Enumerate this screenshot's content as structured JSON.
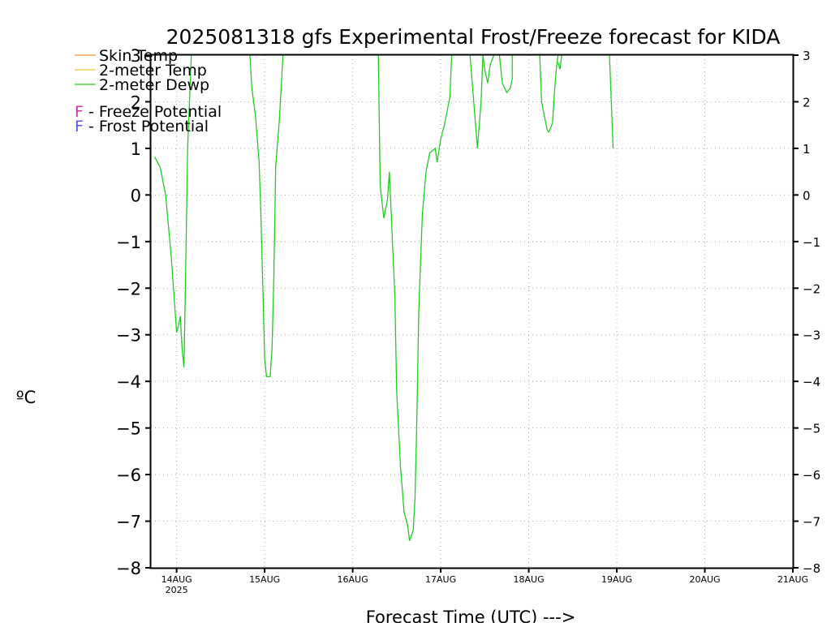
{
  "chart_data": {
    "type": "line",
    "title": "2025081318 gfs Experimental Frost/Freeze forecast for KIDA",
    "xlabel": "Forecast Time (UTC) --->",
    "ylabel": "ºC",
    "ylim": [
      -8,
      3
    ],
    "yticks": [
      3,
      2,
      1,
      0,
      -1,
      -2,
      -3,
      -4,
      -5,
      -6,
      -7,
      -8
    ],
    "yticks_left_labels": [
      "3",
      "2",
      "1",
      "0",
      "−1",
      "−2",
      "−3",
      "−4",
      "−5",
      "−6",
      "−7",
      "−8"
    ],
    "yticks_right_labels": [
      "3",
      "2",
      "1",
      "0",
      "−1",
      "−2",
      "−3",
      "−4",
      "−5",
      "−6",
      "−7",
      "−8"
    ],
    "xlim_hours": [
      -7,
      168
    ],
    "xticks": [
      {
        "hour": 0,
        "label": "14AUG",
        "sublabel": "2025"
      },
      {
        "hour": 24,
        "label": "15AUG",
        "sublabel": ""
      },
      {
        "hour": 48,
        "label": "16AUG",
        "sublabel": ""
      },
      {
        "hour": 72,
        "label": "17AUG",
        "sublabel": ""
      },
      {
        "hour": 96,
        "label": "18AUG",
        "sublabel": ""
      },
      {
        "hour": 120,
        "label": "19AUG",
        "sublabel": ""
      },
      {
        "hour": 144,
        "label": "20AUG",
        "sublabel": ""
      },
      {
        "hour": 168,
        "label": "21AUG",
        "sublabel": ""
      }
    ],
    "grid": true,
    "legend_position": "top-left",
    "legend": [
      {
        "label": "Skin Temp",
        "color": "#f08c2c"
      },
      {
        "label": "2-meter Temp",
        "color": "#e8c838"
      },
      {
        "label": "2-meter Dewp",
        "color": "#22cc22"
      }
    ],
    "potential_legend": [
      {
        "letter": "F",
        "text": " - Freeze Potential",
        "color": "#cc33aa"
      },
      {
        "letter": "F",
        "text": " - Frost Potential",
        "color": "#5555ee"
      }
    ],
    "series": [
      {
        "name": "2-meter Dewp",
        "color": "#22cc22",
        "segments": [
          [
            [
              -6,
              0.82
            ],
            [
              -4.5,
              0.6
            ],
            [
              -3,
              0.0
            ],
            [
              -1.5,
              -1.3
            ],
            [
              -0.5,
              -2.4
            ],
            [
              0,
              -2.95
            ],
            [
              0.5,
              -2.8
            ],
            [
              1,
              -2.6
            ],
            [
              1.5,
              -3.3
            ],
            [
              2,
              -3.7
            ],
            [
              2.5,
              -1.5
            ],
            [
              3,
              1.0
            ],
            [
              3.5,
              2.0
            ],
            [
              4,
              3.0
            ]
          ],
          [
            [
              20,
              3.0
            ],
            [
              20.5,
              2.3
            ],
            [
              21.5,
              1.7
            ],
            [
              22.5,
              0.7
            ],
            [
              23,
              -0.5
            ],
            [
              23.5,
              -2.0
            ],
            [
              24,
              -3.5
            ],
            [
              24.5,
              -3.9
            ],
            [
              25.5,
              -3.9
            ],
            [
              26,
              -3.3
            ],
            [
              26.5,
              -1.8
            ],
            [
              27,
              0.6
            ],
            [
              28,
              1.6
            ],
            [
              29,
              3.0
            ]
          ],
          [
            [
              55,
              3.0
            ],
            [
              55.5,
              0.2
            ],
            [
              56.5,
              -0.5
            ],
            [
              57.5,
              -0.1
            ],
            [
              58,
              0.5
            ],
            [
              58.5,
              -0.4
            ],
            [
              59.5,
              -2.2
            ],
            [
              60,
              -4.2
            ],
            [
              61,
              -5.8
            ],
            [
              62,
              -6.8
            ],
            [
              63,
              -7.1
            ],
            [
              63.5,
              -7.42
            ],
            [
              64.5,
              -7.2
            ],
            [
              65,
              -6.5
            ],
            [
              65.5,
              -4.8
            ],
            [
              66,
              -2.5
            ],
            [
              67,
              -0.4
            ],
            [
              68,
              0.5
            ],
            [
              69,
              0.9
            ],
            [
              70.5,
              1.0
            ],
            [
              71,
              0.7
            ],
            [
              72,
              1.2
            ],
            [
              73,
              1.5
            ],
            [
              74,
              1.9
            ],
            [
              74.5,
              2.1
            ],
            [
              75,
              3.0
            ]
          ],
          [
            [
              80,
              3.0
            ],
            [
              82,
              1.0
            ],
            [
              83,
              2.0
            ],
            [
              83.5,
              3.0
            ]
          ],
          [
            [
              83.5,
              3.0
            ],
            [
              84,
              2.7
            ],
            [
              84.8,
              2.4
            ],
            [
              85.5,
              2.8
            ],
            [
              86.5,
              3.0
            ]
          ],
          [
            [
              88,
              3.0
            ],
            [
              88.8,
              2.4
            ],
            [
              90,
              2.2
            ],
            [
              91,
              2.3
            ],
            [
              91.5,
              2.5
            ],
            [
              91.5,
              3.0
            ]
          ],
          [
            [
              99,
              3.0
            ],
            [
              99.5,
              2.0
            ],
            [
              100,
              1.8
            ],
            [
              101,
              1.4
            ],
            [
              101.5,
              1.35
            ],
            [
              102.5,
              1.55
            ],
            [
              103,
              2.2
            ],
            [
              103.5,
              2.7
            ],
            [
              104,
              3.0
            ]
          ],
          [
            [
              104,
              2.85
            ],
            [
              104.5,
              2.7
            ],
            [
              105,
              3.0
            ]
          ],
          [
            [
              118,
              3.0
            ],
            [
              118.5,
              2.0
            ],
            [
              119,
              1.0
            ]
          ]
        ]
      }
    ]
  }
}
